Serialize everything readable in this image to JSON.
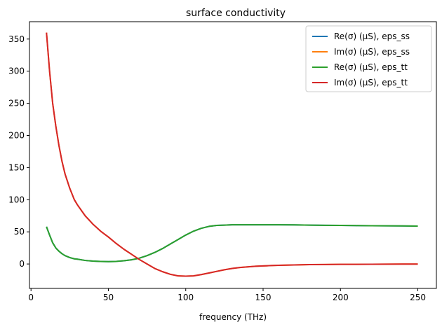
{
  "chart_data": {
    "type": "line",
    "title": "surface conductivity",
    "xlabel": "frequency (THz)",
    "ylabel": "",
    "xlim": [
      -1,
      262
    ],
    "ylim": [
      -38,
      377
    ],
    "xticks": [
      0,
      50,
      100,
      150,
      200,
      250
    ],
    "yticks": [
      0,
      50,
      100,
      150,
      200,
      250,
      300,
      350
    ],
    "grid": false,
    "legend_position": "top-right",
    "x": [
      10,
      12,
      14,
      16,
      18,
      20,
      22,
      25,
      28,
      30,
      35,
      40,
      45,
      50,
      55,
      60,
      65,
      70,
      75,
      80,
      85,
      90,
      95,
      100,
      105,
      110,
      115,
      120,
      125,
      130,
      135,
      140,
      145,
      150,
      155,
      160,
      170,
      180,
      190,
      200,
      210,
      220,
      230,
      240,
      250
    ],
    "series": [
      {
        "name": "Re(σ) (μS), eps_ss",
        "color": "#1f77b4",
        "values": [
          58,
          45,
          33,
          25,
          20,
          16,
          13,
          10,
          8,
          7.5,
          5.5,
          4.5,
          4,
          3.7,
          4,
          5,
          6.5,
          9,
          13,
          18,
          24,
          31,
          38,
          45,
          51,
          55.5,
          58.5,
          60,
          60.5,
          61,
          61,
          61,
          61,
          61,
          61,
          61,
          60.8,
          60.5,
          60.2,
          60,
          59.7,
          59.5,
          59.3,
          59.2,
          59
        ]
      },
      {
        "name": "Im(σ) (μS), eps_ss",
        "color": "#ff7f0e",
        "values": [
          360,
          300,
          250,
          215,
          185,
          160,
          140,
          118,
          100,
          92,
          75,
          62,
          51,
          42,
          32,
          23,
          15,
          7,
          0,
          -7,
          -12,
          -16,
          -18.5,
          -19,
          -18.5,
          -16.5,
          -14,
          -11.5,
          -9,
          -7,
          -5.5,
          -4.5,
          -3.5,
          -3,
          -2.5,
          -2,
          -1.5,
          -1,
          -0.8,
          -0.6,
          -0.5,
          -0.4,
          -0.3,
          -0.2,
          -0.2
        ]
      },
      {
        "name": "Re(σ) (μS), eps_tt",
        "color": "#2ca02c",
        "values": [
          58,
          45,
          33,
          25,
          20,
          16,
          13,
          10,
          8,
          7.5,
          5.5,
          4.5,
          4,
          3.7,
          4,
          5,
          6.5,
          9,
          13,
          18,
          24,
          31,
          38,
          45,
          51,
          55.5,
          58.5,
          60,
          60.5,
          61,
          61,
          61,
          61,
          61,
          61,
          61,
          60.8,
          60.5,
          60.2,
          60,
          59.7,
          59.5,
          59.3,
          59.2,
          59
        ]
      },
      {
        "name": "Im(σ) (μS), eps_tt",
        "color": "#d62728",
        "values": [
          360,
          300,
          250,
          215,
          185,
          160,
          140,
          118,
          100,
          92,
          75,
          62,
          51,
          42,
          32,
          23,
          15,
          7,
          0,
          -7,
          -12,
          -16,
          -18.5,
          -19,
          -18.5,
          -16.5,
          -14,
          -11.5,
          -9,
          -7,
          -5.5,
          -4.5,
          -3.5,
          -3,
          -2.5,
          -2,
          -1.5,
          -1,
          -0.8,
          -0.6,
          -0.5,
          -0.4,
          -0.3,
          -0.2,
          -0.2
        ]
      }
    ]
  }
}
